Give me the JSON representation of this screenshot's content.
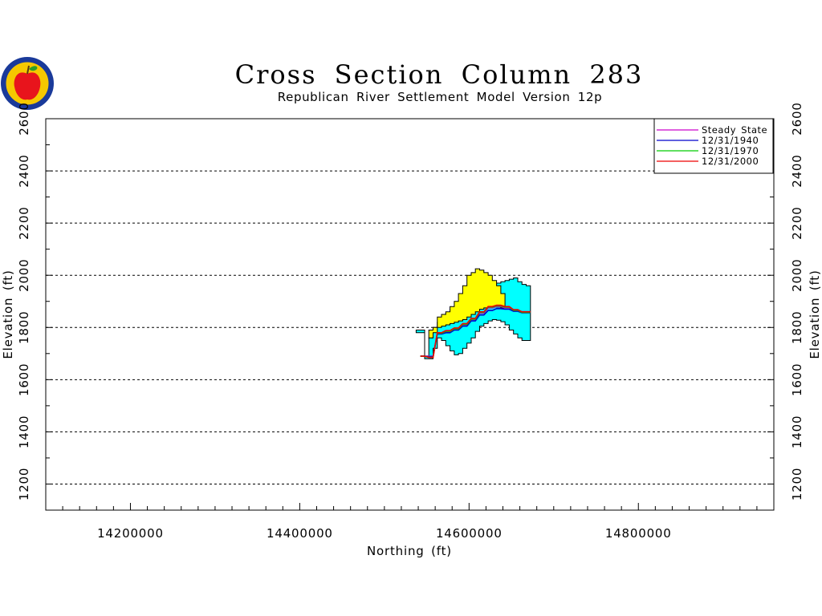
{
  "chart_data": {
    "type": "line",
    "title": "Cross Section Column 283",
    "subtitle": "Republican River Settlement Model Version 12p",
    "xlabel": "Northing (ft)",
    "ylabel": "Elevation (ft)",
    "xlim": [
      14100000,
      14960000
    ],
    "ylim": [
      1100,
      2600
    ],
    "x_ticks": [
      14200000,
      14400000,
      14600000,
      14800000
    ],
    "x_tick_labels": [
      "14200000",
      "14400000",
      "14600000",
      "14800000"
    ],
    "y_ticks": [
      1200,
      1400,
      1600,
      1800,
      2000,
      2200,
      2400,
      2600
    ],
    "y_tick_labels": [
      "1200",
      "1400",
      "1600",
      "1800",
      "2000",
      "2200",
      "2400",
      "2600"
    ],
    "grid": true,
    "legend_position": "top-right",
    "series": [
      {
        "name": "Steady State",
        "color": "#cc00cc",
        "x": [
          14545000,
          14555000,
          14565000,
          14575000,
          14585000,
          14595000,
          14605000,
          14615000,
          14625000,
          14635000,
          14645000,
          14655000,
          14665000,
          14670000
        ],
        "y": [
          1690,
          1690,
          1780,
          1785,
          1795,
          1810,
          1830,
          1855,
          1875,
          1880,
          1875,
          1865,
          1860,
          1860
        ]
      },
      {
        "name": "12/31/1940",
        "color": "#0000cc",
        "x": [
          14545000,
          14555000,
          14565000,
          14575000,
          14585000,
          14595000,
          14605000,
          14615000,
          14625000,
          14635000,
          14645000,
          14655000,
          14665000,
          14670000
        ],
        "y": [
          1690,
          1688,
          1775,
          1780,
          1790,
          1805,
          1825,
          1848,
          1865,
          1872,
          1870,
          1862,
          1856,
          1856
        ]
      },
      {
        "name": "12/31/1970",
        "color": "#00cc00",
        "x": [
          14545000,
          14555000,
          14565000,
          14575000,
          14585000,
          14595000,
          14605000,
          14615000,
          14625000,
          14635000,
          14645000,
          14655000,
          14665000,
          14670000
        ],
        "y": [
          1690,
          1686,
          1778,
          1785,
          1795,
          1812,
          1832,
          1858,
          1878,
          1883,
          1878,
          1866,
          1858,
          1858
        ]
      },
      {
        "name": "12/31/2000",
        "color": "#ee0000",
        "x": [
          14545000,
          14555000,
          14565000,
          14575000,
          14585000,
          14595000,
          14605000,
          14615000,
          14625000,
          14635000,
          14645000,
          14655000,
          14665000,
          14670000
        ],
        "y": [
          1690,
          1685,
          1780,
          1788,
          1798,
          1815,
          1835,
          1860,
          1880,
          1885,
          1880,
          1868,
          1860,
          1860
        ]
      }
    ],
    "layers": [
      {
        "color": "#00ffff",
        "x": [
          14540000,
          14545000,
          14550000,
          14555000,
          14560000,
          14565000,
          14570000,
          14575000,
          14580000,
          14585000,
          14590000,
          14595000,
          14600000,
          14605000,
          14610000,
          14615000,
          14620000,
          14625000,
          14630000,
          14635000,
          14640000,
          14645000,
          14650000,
          14655000,
          14660000,
          14665000,
          14670000
        ],
        "top": [
          1790,
          1790,
          1690,
          1760,
          1800,
          1820,
          1840,
          1855,
          1870,
          1880,
          1890,
          1900,
          1905,
          1915,
          1925,
          1940,
          1955,
          1960,
          1965,
          1970,
          1975,
          1980,
          1985,
          1990,
          1975,
          1965,
          1960
        ],
        "bottom": [
          1780,
          1780,
          1680,
          1680,
          1720,
          1760,
          1750,
          1730,
          1710,
          1695,
          1700,
          1720,
          1740,
          1760,
          1785,
          1805,
          1815,
          1825,
          1830,
          1828,
          1822,
          1810,
          1790,
          1775,
          1760,
          1750,
          1750
        ]
      },
      {
        "color": "#ffff00",
        "x": [
          14555000,
          14560000,
          14565000,
          14570000,
          14575000,
          14580000,
          14585000,
          14590000,
          14595000,
          14600000,
          14605000,
          14610000,
          14615000,
          14620000,
          14625000,
          14630000,
          14635000,
          14640000
        ],
        "top": [
          1790,
          1800,
          1840,
          1850,
          1860,
          1880,
          1900,
          1930,
          1960,
          2000,
          2010,
          2025,
          2020,
          2010,
          2000,
          1980,
          1960,
          1930
        ],
        "bottom": [
          1760,
          1780,
          1800,
          1805,
          1810,
          1815,
          1820,
          1825,
          1830,
          1840,
          1850,
          1860,
          1870,
          1875,
          1880,
          1880,
          1878,
          1875
        ]
      }
    ]
  }
}
